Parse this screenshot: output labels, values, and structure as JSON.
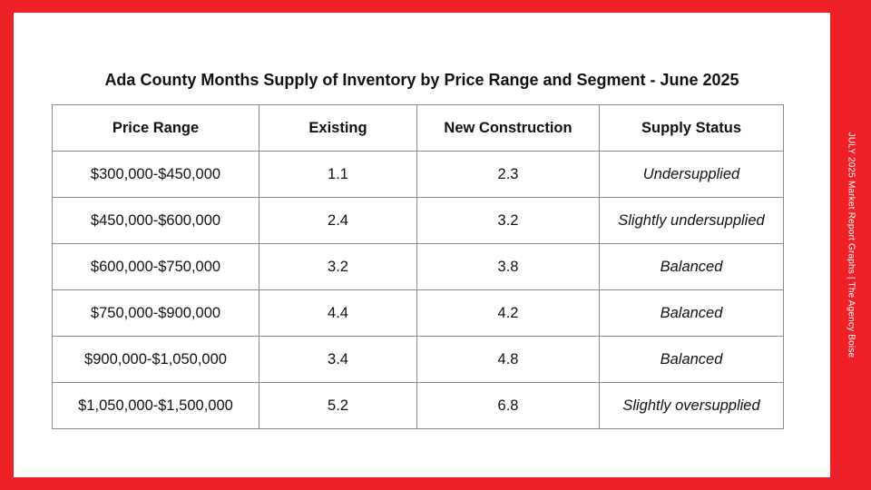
{
  "title": "Ada County Months Supply of Inventory by Price Range and Segment - June 2025",
  "side_label": "JULY 2025 Market Report Graphs  |  The Agency Boise",
  "colors": {
    "frame": "#ee2129",
    "panel": "#ffffff",
    "grid": "#8a8a8a"
  },
  "table": {
    "headers": [
      "Price Range",
      "Existing",
      "New Construction",
      "Supply Status"
    ],
    "rows": [
      {
        "price_range": "$300,000-$450,000",
        "existing": "1.1",
        "new_construction": "2.3",
        "supply_status": "Undersupplied"
      },
      {
        "price_range": "$450,000-$600,000",
        "existing": "2.4",
        "new_construction": "3.2",
        "supply_status": "Slightly undersupplied"
      },
      {
        "price_range": "$600,000-$750,000",
        "existing": "3.2",
        "new_construction": "3.8",
        "supply_status": "Balanced"
      },
      {
        "price_range": "$750,000-$900,000",
        "existing": "4.4",
        "new_construction": "4.2",
        "supply_status": "Balanced"
      },
      {
        "price_range": "$900,000-$1,050,000",
        "existing": "3.4",
        "new_construction": "4.8",
        "supply_status": "Balanced"
      },
      {
        "price_range": "$1,050,000-$1,500,000",
        "existing": "5.2",
        "new_construction": "6.8",
        "supply_status": "Slightly oversupplied"
      }
    ]
  }
}
